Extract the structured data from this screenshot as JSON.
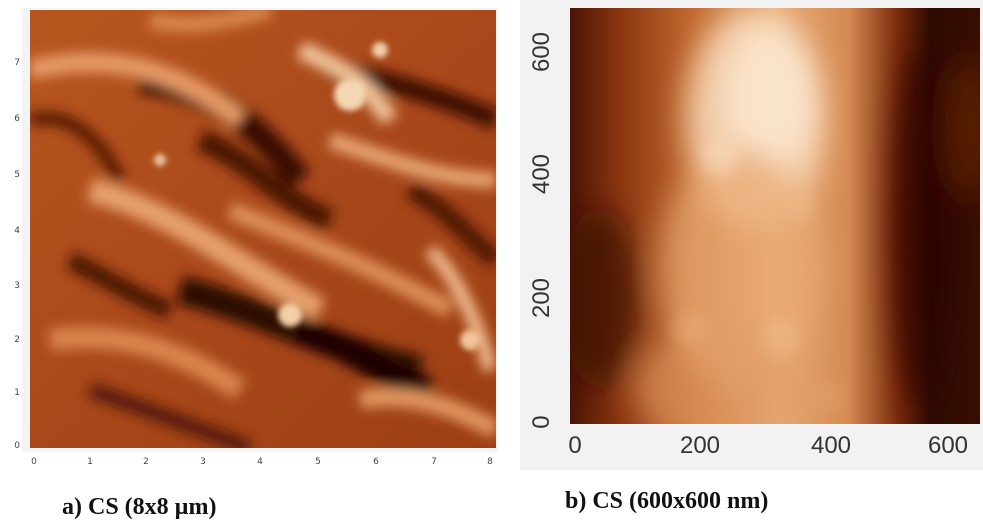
{
  "panel_a": {
    "caption": "a)  CS (8x8 µm)",
    "y_ticks": [
      "0",
      "1",
      "2",
      "3",
      "4",
      "5",
      "6",
      "7"
    ],
    "x_ticks": [
      "0",
      "1",
      "2",
      "3",
      "4",
      "5",
      "6",
      "7",
      "8"
    ]
  },
  "panel_b": {
    "caption": "b)  CS (600x600 nm)",
    "y_ticks": [
      "0",
      "200",
      "400",
      "600"
    ],
    "x_ticks": [
      "0",
      "200",
      "400",
      "600"
    ]
  },
  "colors": {
    "dark": "#2a0800",
    "mid": "#b5541e",
    "light": "#f6d7b3",
    "background": "#ffffff"
  }
}
